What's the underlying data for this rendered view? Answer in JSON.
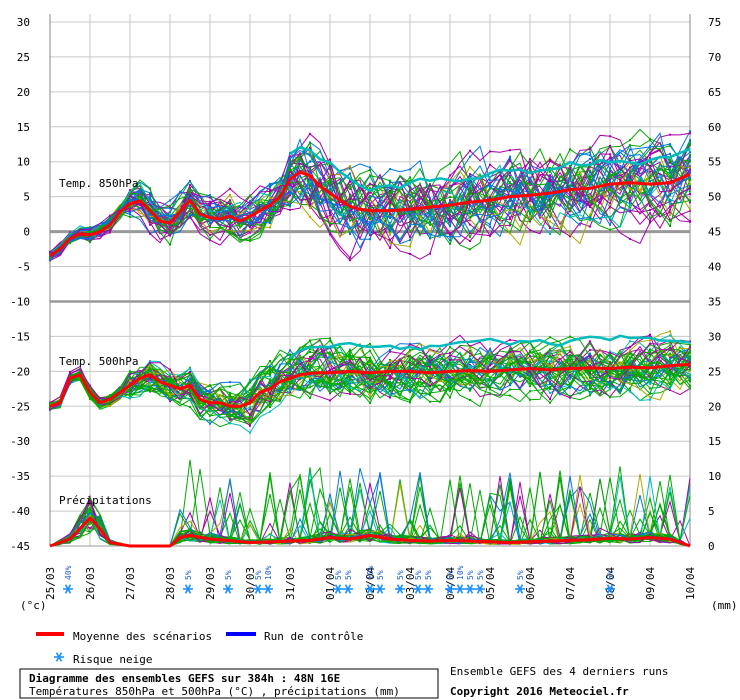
{
  "chart_data": {
    "type": "line",
    "left_axis": {
      "ticks": [
        "30",
        "25",
        "20",
        "15",
        "10",
        "5",
        "0",
        "-5",
        "-10",
        "-15",
        "-20",
        "-25",
        "-30",
        "-35",
        "-40",
        "-45"
      ],
      "range": [
        -45,
        30
      ],
      "unit_label": "(°c)"
    },
    "right_axis": {
      "ticks": [
        "75",
        "70",
        "65",
        "60",
        "55",
        "50",
        "45",
        "40",
        "35",
        "30",
        "25",
        "20",
        "15",
        "10",
        "5",
        "0"
      ],
      "range": [
        0,
        75
      ],
      "unit_label": "(mm)"
    },
    "x_axis": {
      "range_days": [
        0,
        16
      ],
      "ticks": [
        "25/03",
        "26/03",
        "27/03",
        "28/03",
        "29/03",
        "30/03",
        "31/03",
        "01/04",
        "02/04",
        "03/04",
        "04/04",
        "05/04",
        "06/04",
        "07/04",
        "08/04",
        "09/04",
        "10/04"
      ]
    },
    "panel_labels": [
      "Temp. 850hPa",
      "Temp. 500hPa",
      "Précipitations"
    ],
    "series": [
      {
        "name": "Moyenne des scénarios",
        "color": "#ff0000",
        "key": "t850_mean",
        "x": [
          0,
          0.25,
          0.5,
          0.75,
          1,
          1.25,
          1.5,
          1.75,
          2,
          2.25,
          2.5,
          2.75,
          3,
          3.25,
          3.5,
          3.75,
          4,
          4.25,
          4.5,
          4.75,
          5,
          5.25,
          5.5,
          5.75,
          6,
          6.25,
          6.5,
          6.75,
          7,
          7.25,
          7.5,
          7.75,
          8,
          8.5,
          9,
          9.5,
          10,
          10.5,
          11,
          11.5,
          12,
          12.5,
          13,
          13.5,
          14,
          14.5,
          15,
          15.5,
          16
        ],
        "y": [
          -3.5,
          -2.5,
          -1,
          -0.3,
          -0.5,
          0,
          1,
          2.8,
          4,
          4.4,
          3,
          1.5,
          1.2,
          2.8,
          4.5,
          2.5,
          2,
          1.8,
          2.2,
          1.5,
          2.2,
          3,
          3.8,
          5,
          7.5,
          8.5,
          8,
          6.5,
          5.5,
          4.5,
          3.6,
          3.2,
          3,
          3,
          3.2,
          3.5,
          3.8,
          4.2,
          4.5,
          5,
          5.2,
          5.5,
          6,
          6.2,
          6.8,
          7,
          6.8,
          7,
          8.2
        ]
      },
      {
        "name": "Moyenne des scénarios",
        "color": "#ff0000",
        "key": "t500_mean",
        "x": [
          0,
          0.25,
          0.5,
          0.75,
          1,
          1.25,
          1.5,
          1.75,
          2,
          2.25,
          2.5,
          2.75,
          3,
          3.25,
          3.5,
          3.75,
          4,
          4.25,
          4.5,
          4.75,
          5,
          5.25,
          5.5,
          5.75,
          6,
          6.25,
          6.5,
          6.75,
          7,
          7.5,
          8,
          8.5,
          9,
          9.5,
          10,
          10.5,
          11,
          11.5,
          12,
          12.5,
          13,
          13.5,
          14,
          14.5,
          15,
          15.5,
          16
        ],
        "y": [
          -25,
          -24.5,
          -21,
          -20.5,
          -23,
          -24.5,
          -24,
          -23,
          -22,
          -21,
          -20.5,
          -21.5,
          -22,
          -22.5,
          -22,
          -24,
          -24.5,
          -24.5,
          -25,
          -25,
          -24.5,
          -23,
          -22.5,
          -21.5,
          -21,
          -20.5,
          -20.3,
          -20.2,
          -20.2,
          -20,
          -20.2,
          -20,
          -20,
          -20.2,
          -20,
          -19.9,
          -20,
          -19.8,
          -19.6,
          -19.8,
          -19.6,
          -19.5,
          -19.6,
          -19.4,
          -19.5,
          -19.2,
          -19
        ]
      },
      {
        "name": "Moyenne des scénarios",
        "color": "#ff0000",
        "key": "precip_mean",
        "x": [
          0,
          0.5,
          0.75,
          1,
          1.25,
          1.5,
          2,
          2.5,
          3,
          3.25,
          3.5,
          4,
          5,
          6,
          6.5,
          7,
          7.5,
          8,
          8.5,
          9,
          9.5,
          10,
          10.5,
          11,
          11.5,
          12,
          12.5,
          13,
          13.5,
          14,
          14.5,
          15,
          15.5,
          16
        ],
        "y": [
          0,
          1,
          2.5,
          4,
          2.5,
          0.5,
          0,
          0,
          0,
          1.2,
          1.5,
          1,
          0.5,
          0.7,
          0.8,
          1.2,
          1,
          1.5,
          1,
          0.8,
          0.7,
          0.8,
          0.7,
          0.6,
          0.5,
          0.6,
          0.7,
          0.8,
          0.9,
          1.1,
          1,
          1.2,
          1,
          0
        ]
      },
      {
        "name": "Run de contrôle",
        "color": "#0000ff",
        "key": "control",
        "x": [],
        "y": []
      }
    ],
    "snow_risk": {
      "label": "Risque neige",
      "markers": [
        {
          "day": 0.2,
          "pct": "40%"
        },
        {
          "day": 3.2,
          "pct": "5%"
        },
        {
          "day": 4.2,
          "pct": "5%"
        },
        {
          "day": 4.95,
          "pct": "5%"
        },
        {
          "day": 5.2,
          "pct": "10%"
        },
        {
          "day": 6.95,
          "pct": "5%"
        },
        {
          "day": 7.2,
          "pct": "5%"
        },
        {
          "day": 7.75,
          "pct": "10%"
        },
        {
          "day": 8.0,
          "pct": "5%"
        },
        {
          "day": 8.5,
          "pct": "5%"
        },
        {
          "day": 8.95,
          "pct": "5%"
        },
        {
          "day": 9.2,
          "pct": "5%"
        },
        {
          "day": 9.75,
          "pct": "5%"
        },
        {
          "day": 10.0,
          "pct": "10%"
        },
        {
          "day": 10.25,
          "pct": "5%"
        },
        {
          "day": 10.5,
          "pct": "5%"
        },
        {
          "day": 11.5,
          "pct": "5%"
        },
        {
          "day": 13.75,
          "pct": "5%"
        }
      ]
    },
    "ensemble_colors": [
      "#00aa00",
      "#aa00aa",
      "#aaaa00",
      "#0077dd",
      "#00bbbb"
    ]
  },
  "legend": {
    "mean_label": "Moyenne des scénarios",
    "control_label": "Run de contrôle",
    "snow_label": "Risque neige"
  },
  "footer": {
    "title": "Diagramme des ensembles GEFS sur 384h : 48N 16E",
    "subtitle": "Températures 850hPa et 500hPa (°C) , précipitations (mm)",
    "runs_note": "Ensemble GEFS des 4 derniers runs",
    "copyright": "Copyright 2016 Meteociel.fr"
  }
}
